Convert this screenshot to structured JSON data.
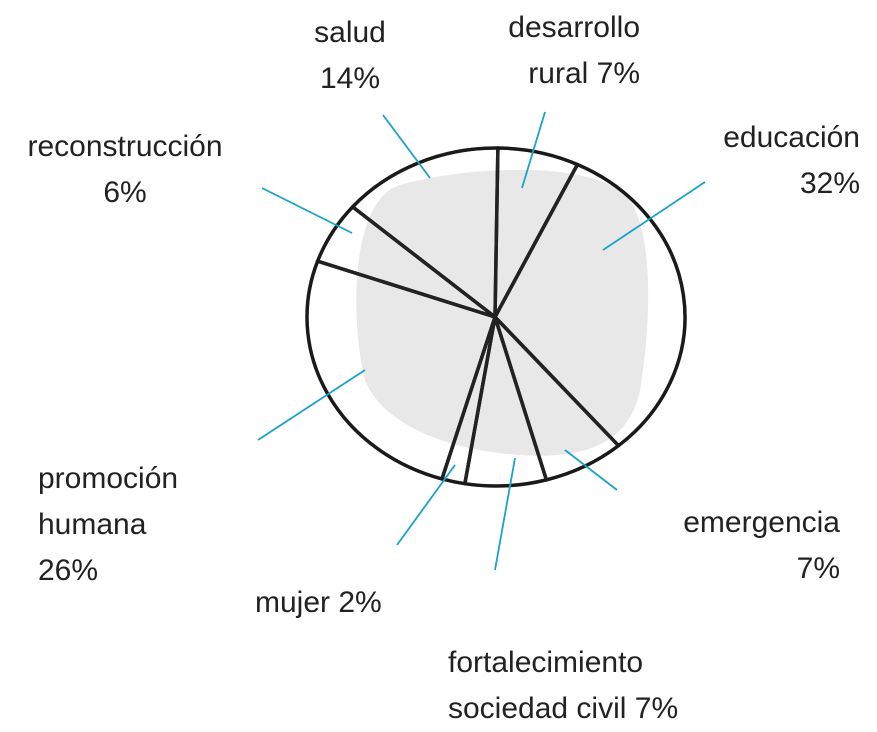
{
  "chart_data": {
    "type": "pie",
    "categories": [
      "desarrollo rural",
      "educación",
      "emergencia",
      "fortalecimiento sociedad civil",
      "mujer",
      "promoción humana",
      "reconstrucción",
      "salud"
    ],
    "values": [
      7,
      32,
      7,
      7,
      2,
      26,
      6,
      14
    ],
    "value_labels": [
      "7%",
      "32%",
      "7%",
      "7%",
      "2%",
      "26%",
      "6%",
      "14%"
    ],
    "color": "#222222"
  }
}
